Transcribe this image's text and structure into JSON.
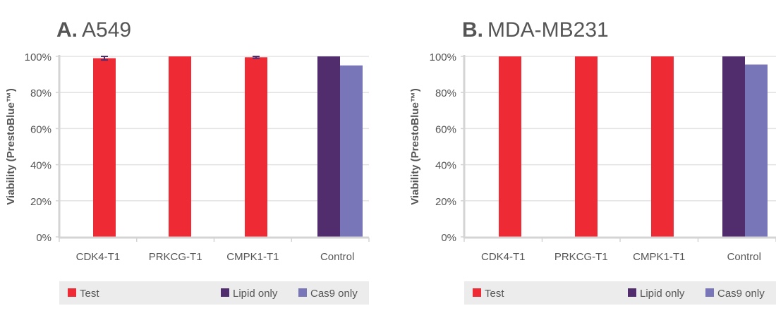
{
  "colors": {
    "test": "#ee2b35",
    "lipid": "#512d6d",
    "cas9": "#7876b8",
    "grid": "#e3e3e3",
    "axis": "#d4d4d4",
    "legend_bg": "#ececec",
    "text": "#555555"
  },
  "chart_data": [
    {
      "type": "bar",
      "panel_letter": "A.",
      "title": "A549",
      "ylabel": "Viability (PrestoBlue™)",
      "ylim": [
        0,
        100
      ],
      "yticks": [
        "0%",
        "20%",
        "40%",
        "60%",
        "80%",
        "100%"
      ],
      "categories": [
        "CDK4-T1",
        "PRKCG-T1",
        "CMPK1-T1",
        "Control"
      ],
      "series": [
        {
          "name": "Test",
          "values": [
            99,
            100,
            99.5,
            null
          ],
          "errors": [
            1,
            0,
            0.5,
            null
          ]
        },
        {
          "name": "Lipid only",
          "values": [
            null,
            null,
            null,
            100
          ]
        },
        {
          "name": "Cas9 only",
          "values": [
            null,
            null,
            null,
            95
          ]
        }
      ],
      "grid": true,
      "legend": [
        "Test",
        "Lipid only",
        "Cas9 only"
      ],
      "legend_position": "bottom"
    },
    {
      "type": "bar",
      "panel_letter": "B.",
      "title": "MDA-MB231",
      "ylabel": "Viability (PrestoBlue™)",
      "ylim": [
        0,
        100
      ],
      "yticks": [
        "0%",
        "20%",
        "40%",
        "60%",
        "80%",
        "100%"
      ],
      "categories": [
        "CDK4-T1",
        "PRKCG-T1",
        "CMPK1-T1",
        "Control"
      ],
      "series": [
        {
          "name": "Test",
          "values": [
            100,
            100,
            100,
            null
          ],
          "errors": [
            0,
            0,
            0,
            null
          ]
        },
        {
          "name": "Lipid only",
          "values": [
            null,
            null,
            null,
            100
          ]
        },
        {
          "name": "Cas9 only",
          "values": [
            null,
            null,
            null,
            95.5
          ]
        }
      ],
      "grid": true,
      "legend": [
        "Test",
        "Lipid only",
        "Cas9 only"
      ],
      "legend_position": "bottom"
    }
  ]
}
